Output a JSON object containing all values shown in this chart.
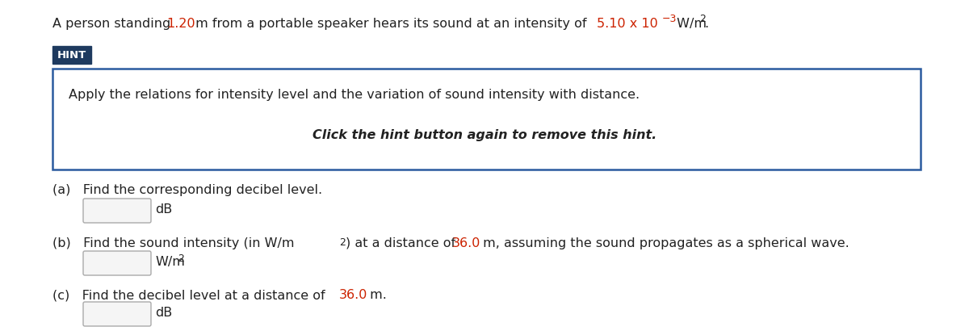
{
  "bg_color": "#ffffff",
  "text_color": "#222222",
  "red_color": "#cc2200",
  "hint_bg": "#1e3a5f",
  "hint_text_color": "#ffffff",
  "hint_box_border": "#2a5a9f",
  "hint_box_bg": "#ffffff",
  "hint_label": "HINT",
  "hint_body": "Apply the relations for intensity level and the variation of sound intensity with distance.",
  "hint_italic": "Click the hint button again to remove this hint.",
  "part_a_text": "Find the corresponding decibel level.",
  "part_a_unit": "dB",
  "part_b_dist": "36.0",
  "part_c_dist": "36.0",
  "part_c_unit": "dB",
  "font_size_main": 11.5,
  "font_size_hint_body": 11.5,
  "font_size_hint_label": 9.5,
  "font_size_super": 9
}
